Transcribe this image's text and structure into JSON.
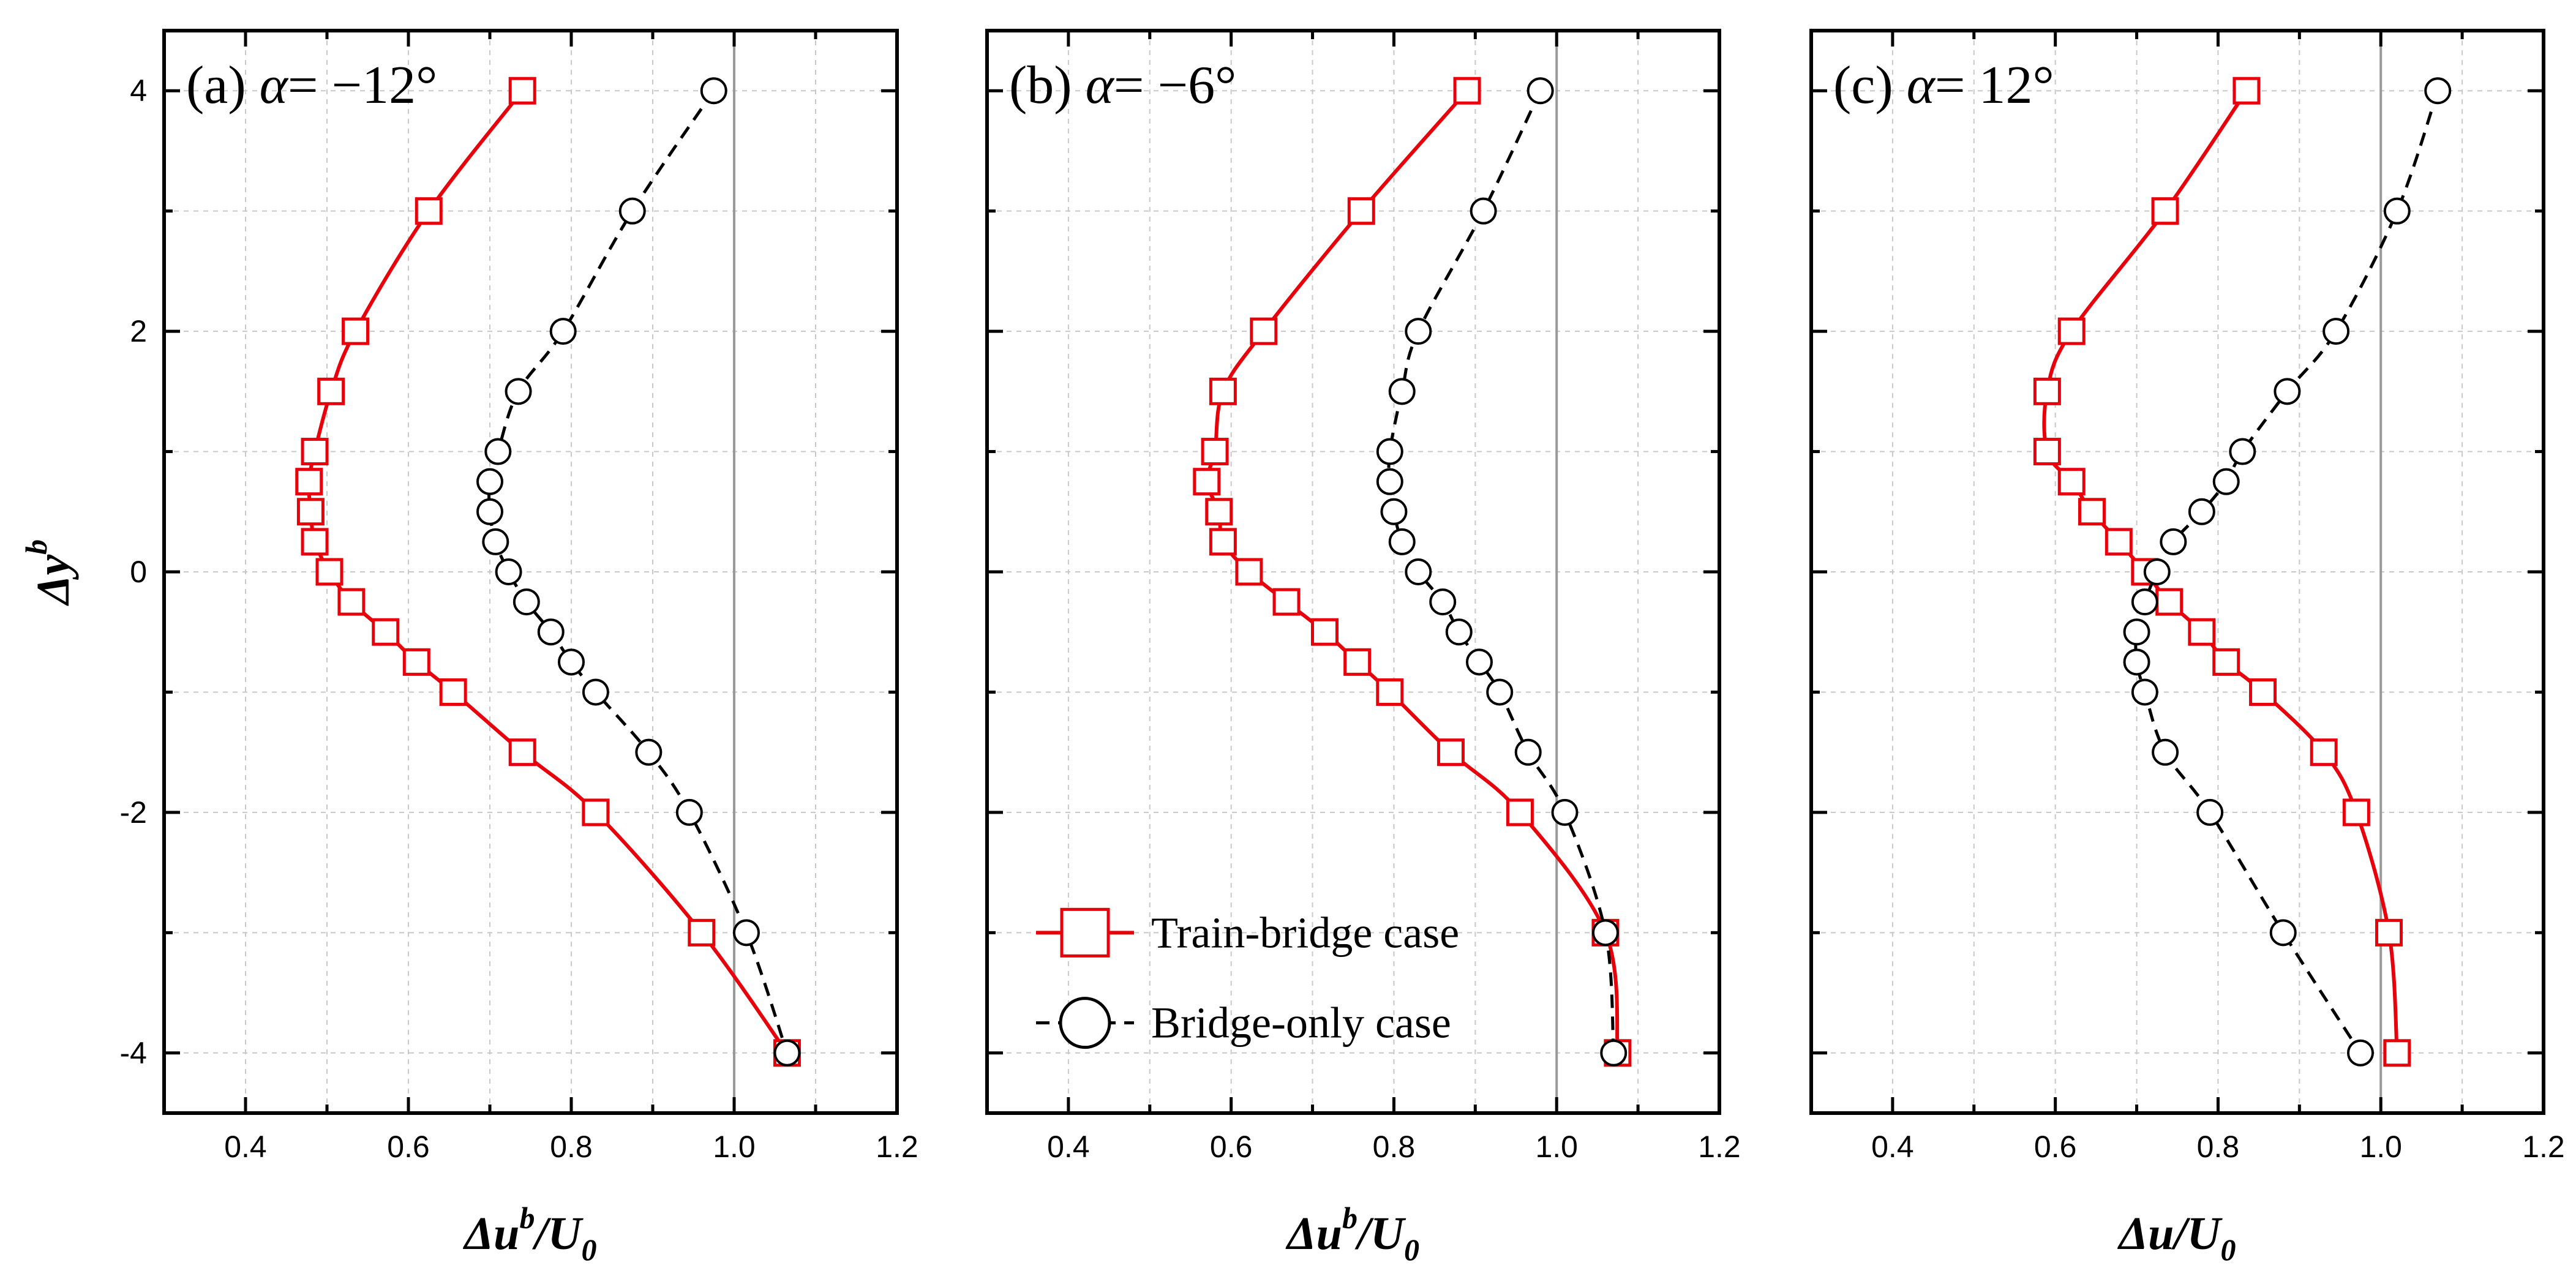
{
  "colors": {
    "train_bridge": "#e8000b",
    "bridge_only": "#000000",
    "grid": "#c8c8c8",
    "ref_line": "#9a9a9a"
  },
  "y_axis_title": {
    "main": "Δy",
    "sup": "b"
  },
  "legend": {
    "train_bridge": "Train-bridge case",
    "bridge_only": "Bridge-only case"
  },
  "chart_data": [
    {
      "type": "line",
      "panel_label": {
        "prefix": "(a)",
        "alpha": "α",
        "value": "= −12°"
      },
      "xlabel": {
        "main": "Δu",
        "sup": "b",
        "tail": "/U",
        "sub": "0"
      },
      "xlim": [
        0.3,
        1.2
      ],
      "ylim": [
        -4.5,
        4.5
      ],
      "xticks": [
        "0.4",
        "0.6",
        "0.8",
        "1.0",
        "1.2"
      ],
      "yticks": [
        "-4",
        "-2",
        "0",
        "2",
        "4"
      ],
      "series": [
        {
          "name": "Train-bridge case",
          "y": [
            4,
            3,
            2,
            1.5,
            1,
            0.75,
            0.5,
            0.25,
            0,
            -0.25,
            -0.5,
            -0.75,
            -1,
            -1.5,
            -2,
            -3,
            -4
          ],
          "x": [
            0.74,
            0.625,
            0.535,
            0.505,
            0.485,
            0.478,
            0.48,
            0.485,
            0.503,
            0.53,
            0.572,
            0.61,
            0.655,
            0.74,
            0.83,
            0.96,
            1.065
          ]
        },
        {
          "name": "Bridge-only case",
          "y": [
            4,
            3,
            2,
            1.5,
            1,
            0.75,
            0.5,
            0.25,
            0,
            -0.25,
            -0.5,
            -0.75,
            -1,
            -1.5,
            -2,
            -3,
            -4
          ],
          "x": [
            0.975,
            0.875,
            0.79,
            0.735,
            0.71,
            0.7,
            0.7,
            0.707,
            0.723,
            0.745,
            0.775,
            0.8,
            0.83,
            0.895,
            0.945,
            1.015,
            1.065
          ]
        }
      ]
    },
    {
      "type": "line",
      "panel_label": {
        "prefix": "(b)",
        "alpha": "α",
        "value": "= −6°"
      },
      "xlabel": {
        "main": "Δu",
        "sup": "b",
        "tail": "/U",
        "sub": "0"
      },
      "xlim": [
        0.3,
        1.2
      ],
      "ylim": [
        -4.5,
        4.5
      ],
      "xticks": [
        "0.4",
        "0.6",
        "0.8",
        "1.0",
        "1.2"
      ],
      "yticks": [
        "-4",
        "-2",
        "0",
        "2",
        "4"
      ],
      "series": [
        {
          "name": "Train-bridge case",
          "y": [
            4,
            3,
            2,
            1.5,
            1,
            0.75,
            0.5,
            0.25,
            0,
            -0.25,
            -0.5,
            -0.75,
            -1,
            -1.5,
            -2,
            -3,
            -4
          ],
          "x": [
            0.89,
            0.76,
            0.64,
            0.59,
            0.58,
            0.57,
            0.585,
            0.59,
            0.622,
            0.668,
            0.715,
            0.755,
            0.795,
            0.87,
            0.955,
            1.06,
            1.075
          ]
        },
        {
          "name": "Bridge-only case",
          "y": [
            4,
            3,
            2,
            1.5,
            1,
            0.75,
            0.5,
            0.25,
            0,
            -0.25,
            -0.5,
            -0.75,
            -1,
            -1.5,
            -2,
            -3,
            -4
          ],
          "x": [
            0.98,
            0.91,
            0.83,
            0.81,
            0.795,
            0.795,
            0.8,
            0.81,
            0.83,
            0.86,
            0.88,
            0.905,
            0.93,
            0.965,
            1.01,
            1.06,
            1.07
          ]
        }
      ]
    },
    {
      "type": "line",
      "panel_label": {
        "prefix": "(c)",
        "alpha": "α",
        "value": "= 12°"
      },
      "xlabel": {
        "main": "Δu",
        "sup": "",
        "tail": "/U",
        "sub": "0"
      },
      "xlim": [
        0.3,
        1.2
      ],
      "ylim": [
        -4.5,
        4.5
      ],
      "xticks": [
        "0.4",
        "0.6",
        "0.8",
        "1.0",
        "1.2"
      ],
      "yticks": [
        "-4",
        "-2",
        "0",
        "2",
        "4"
      ],
      "series": [
        {
          "name": "Train-bridge case",
          "y": [
            4,
            3,
            2,
            1.5,
            1,
            0.75,
            0.5,
            0.25,
            0,
            -0.25,
            -0.5,
            -0.75,
            -1,
            -1.5,
            -2,
            -3,
            -4
          ],
          "x": [
            0.835,
            0.735,
            0.62,
            0.59,
            0.59,
            0.62,
            0.645,
            0.678,
            0.71,
            0.74,
            0.78,
            0.81,
            0.855,
            0.93,
            0.97,
            1.01,
            1.02
          ]
        },
        {
          "name": "Bridge-only case",
          "y": [
            4,
            3,
            2,
            1.5,
            1,
            0.75,
            0.5,
            0.25,
            0,
            -0.25,
            -0.5,
            -0.75,
            -1,
            -1.5,
            -2,
            -3,
            -4
          ],
          "x": [
            1.07,
            1.02,
            0.945,
            0.885,
            0.83,
            0.81,
            0.78,
            0.745,
            0.725,
            0.71,
            0.7,
            0.7,
            0.71,
            0.735,
            0.79,
            0.88,
            0.975
          ]
        }
      ]
    }
  ]
}
